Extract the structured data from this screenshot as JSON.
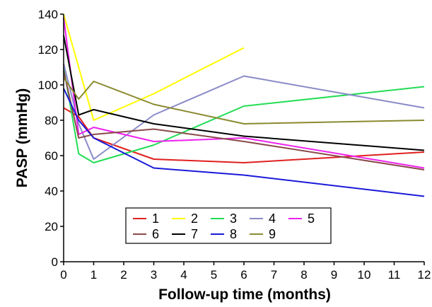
{
  "chart_data": {
    "type": "line",
    "title": "",
    "xlabel": "Follow-up time (months)",
    "ylabel": "PASP (mmHg)",
    "xlim": [
      0,
      12
    ],
    "ylim": [
      0,
      140
    ],
    "xticks": [
      0,
      1,
      2,
      3,
      4,
      5,
      6,
      7,
      8,
      9,
      10,
      11,
      12
    ],
    "yticks": [
      0,
      20,
      40,
      60,
      80,
      100,
      120,
      140
    ],
    "grid": false,
    "legend_position": "bottom-left",
    "series": [
      {
        "name": "1",
        "color": "#e02020",
        "points": [
          [
            0,
            87
          ],
          [
            0.5,
            82
          ],
          [
            1,
            70
          ],
          [
            3,
            58
          ],
          [
            6,
            56
          ],
          [
            12,
            62
          ]
        ]
      },
      {
        "name": "2",
        "color": "#ffff00",
        "points": [
          [
            0,
            140
          ],
          [
            1,
            80
          ],
          [
            3,
            95
          ],
          [
            6,
            121
          ]
        ]
      },
      {
        "name": "3",
        "color": "#22dd55",
        "points": [
          [
            0,
            110
          ],
          [
            0.5,
            61
          ],
          [
            1,
            56
          ],
          [
            3,
            66
          ],
          [
            6,
            88
          ],
          [
            12,
            99
          ]
        ]
      },
      {
        "name": "4",
        "color": "#8a8ac8",
        "points": [
          [
            0,
            112
          ],
          [
            0.5,
            78
          ],
          [
            1,
            58
          ],
          [
            3,
            83
          ],
          [
            6,
            105
          ],
          [
            12,
            87
          ]
        ]
      },
      {
        "name": "5",
        "color": "#ee22ee",
        "points": [
          [
            0,
            138
          ],
          [
            0.5,
            72
          ],
          [
            1,
            76
          ],
          [
            3,
            68
          ],
          [
            6,
            70
          ],
          [
            12,
            53
          ]
        ]
      },
      {
        "name": "6",
        "color": "#8b4a4a",
        "points": [
          [
            0,
            108
          ],
          [
            0.5,
            70
          ],
          [
            1,
            72
          ],
          [
            3,
            75
          ],
          [
            6,
            68
          ],
          [
            12,
            52
          ]
        ]
      },
      {
        "name": "7",
        "color": "#000000",
        "points": [
          [
            0,
            128
          ],
          [
            0.5,
            83
          ],
          [
            1,
            86
          ],
          [
            3,
            78
          ],
          [
            6,
            71
          ],
          [
            12,
            63
          ]
        ]
      },
      {
        "name": "8",
        "color": "#1a1ad8",
        "points": [
          [
            0,
            98
          ],
          [
            0.5,
            80
          ],
          [
            1,
            70
          ],
          [
            3,
            53
          ],
          [
            6,
            49
          ],
          [
            12,
            37
          ]
        ]
      },
      {
        "name": "9",
        "color": "#8a8a30",
        "points": [
          [
            0,
            104
          ],
          [
            0.5,
            92
          ],
          [
            1,
            102
          ],
          [
            3,
            89
          ],
          [
            6,
            78
          ],
          [
            12,
            80
          ]
        ]
      }
    ]
  }
}
